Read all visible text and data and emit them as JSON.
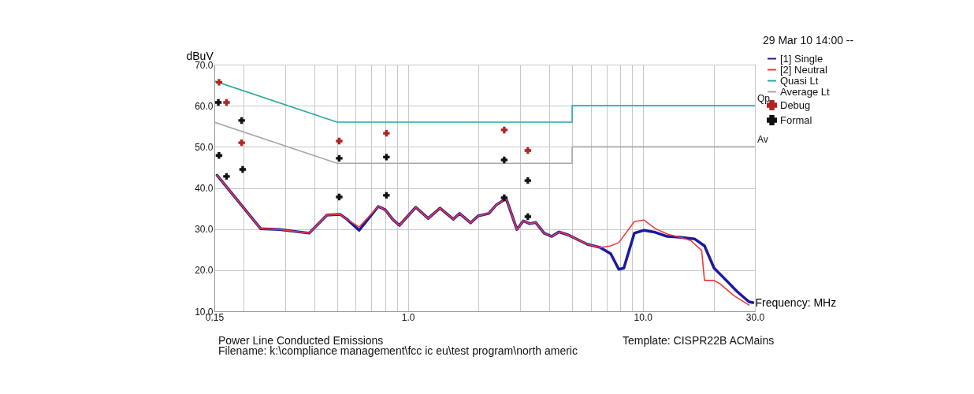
{
  "chart_data": {
    "type": "line",
    "xlabel": "Frequency: MHz",
    "ylabel": "dBuV",
    "log": "x",
    "grid": true,
    "legend": "top right",
    "line_style": "solid",
    "xlim": [
      0.15,
      30
    ],
    "ylim": [
      10,
      70
    ],
    "xticks": [
      0.15,
      {
        "value": 0.2,
        "label": null
      },
      {
        "value": 0.3,
        "label": null
      },
      {
        "value": 0.4,
        "label": null
      },
      {
        "value": 0.5,
        "label": null
      },
      {
        "value": 0.6,
        "label": null
      },
      {
        "value": 0.7,
        "label": null
      },
      {
        "value": 0.8,
        "label": null
      },
      {
        "value": 0.9,
        "label": null
      },
      {
        "value": 1,
        "label": "1.0"
      },
      {
        "value": 2,
        "label": null
      },
      {
        "value": 3,
        "label": null
      },
      {
        "value": 4,
        "label": null
      },
      {
        "value": 5,
        "label": null
      },
      {
        "value": 6,
        "label": null
      },
      {
        "value": 7,
        "label": null
      },
      {
        "value": 8,
        "label": null
      },
      {
        "value": 9,
        "label": null
      },
      {
        "value": 10,
        "label": "10.0"
      },
      {
        "value": 20,
        "label": null
      },
      {
        "value": 30,
        "label": "30.0"
      }
    ],
    "yticks": [
      {
        "value": 10,
        "label": "10.0"
      },
      {
        "value": 20,
        "label": "20.0"
      },
      {
        "value": 30,
        "label": "30.0"
      },
      {
        "value": 40,
        "label": "40.0"
      },
      {
        "value": 50,
        "label": "50.0"
      },
      {
        "value": 60,
        "label": "60.0"
      },
      {
        "value": 70,
        "label": "70.0"
      }
    ],
    "series": [
      {
        "name": "[1] Single",
        "color": "#1a1a9e",
        "x": [
          0.154,
          0.236,
          0.284,
          0.38,
          0.452,
          0.514,
          0.55,
          0.62,
          0.748,
          0.8,
          0.86,
          0.92,
          1.08,
          1.22,
          1.37,
          1.56,
          1.66,
          1.85,
          1.99,
          2.21,
          2.38,
          2.62,
          2.91,
          3.1,
          3.3,
          3.5,
          3.8,
          4.1,
          4.4,
          4.8,
          5.8,
          6.6,
          7.3,
          7.9,
          8.3,
          9.2,
          10.1,
          11.3,
          12.7,
          14.3,
          16.6,
          18.3,
          20.1,
          21.7,
          25.2,
          28.3,
          29.4
        ],
        "values": [
          43.1,
          30.1,
          29.9,
          29.0,
          33.4,
          33.6,
          32.4,
          29.7,
          35.5,
          34.7,
          32.4,
          30.9,
          35.3,
          32.6,
          35.1,
          32.4,
          33.8,
          31.5,
          33.2,
          33.8,
          35.9,
          37.4,
          29.9,
          32.0,
          31.3,
          31.6,
          29.0,
          28.2,
          29.3,
          28.6,
          26.3,
          25.5,
          24.0,
          20.2,
          20.5,
          29.0,
          29.7,
          29.2,
          28.2,
          28.0,
          27.6,
          25.9,
          20.5,
          18.6,
          14.8,
          12.3,
          12.1
        ]
      },
      {
        "name": "[2] Neutral",
        "color": "#f03a3a",
        "x": [
          0.154,
          0.236,
          0.284,
          0.38,
          0.452,
          0.514,
          0.55,
          0.62,
          0.748,
          0.8,
          0.86,
          0.92,
          1.08,
          1.22,
          1.37,
          1.56,
          1.66,
          1.85,
          1.99,
          2.21,
          2.38,
          2.62,
          2.91,
          3.1,
          3.3,
          3.5,
          3.8,
          4.1,
          4.4,
          4.8,
          5.8,
          6.6,
          7.3,
          7.9,
          9.2,
          10.1,
          11.3,
          12.7,
          14.3,
          16.0,
          17.8,
          18.3,
          20.1,
          21.3,
          24.4,
          28.3
        ],
        "values": [
          43.1,
          30.1,
          29.9,
          29.0,
          33.4,
          33.6,
          32.4,
          30.5,
          35.5,
          34.7,
          32.4,
          30.9,
          35.3,
          32.6,
          35.1,
          32.4,
          33.8,
          31.5,
          33.2,
          33.8,
          35.9,
          37.4,
          29.9,
          32.0,
          31.3,
          31.6,
          29.0,
          28.2,
          29.3,
          28.6,
          26.3,
          25.5,
          25.9,
          26.7,
          31.8,
          32.2,
          30.1,
          28.8,
          28.0,
          27.2,
          24.8,
          17.5,
          17.5,
          16.7,
          13.8,
          11.5
        ]
      },
      {
        "name": "Quasi Lt",
        "color": "#2aa7a7",
        "x": [
          0.15,
          0.5,
          5,
          5,
          30
        ],
        "values": [
          66,
          56,
          56,
          60,
          60
        ]
      },
      {
        "name": "Average Lt",
        "color": "#a8a8a8",
        "x": [
          0.15,
          0.5,
          5,
          5,
          30
        ],
        "values": [
          56,
          46,
          46,
          50,
          50
        ]
      },
      {
        "name": "Debug",
        "type": "scatter",
        "marker": "cross",
        "color": "#b22222",
        "x": [
          0.157,
          0.169,
          0.196,
          0.51,
          0.81,
          2.57,
          3.24
        ],
        "values": [
          65.7,
          60.8,
          51.0,
          51.4,
          53.3,
          54.1,
          49.1
        ]
      },
      {
        "name": "Formal",
        "type": "scatter",
        "marker": "cross",
        "color": "#111111",
        "x": [
          0.156,
          0.157,
          0.169,
          0.196,
          0.198,
          0.51,
          0.51,
          0.81,
          0.81,
          2.57,
          2.57,
          3.24,
          3.24
        ],
        "values": [
          60.8,
          47.9,
          42.8,
          56.4,
          44.5,
          47.2,
          37.8,
          47.5,
          38.2,
          46.8,
          37.6,
          41.8,
          33.0
        ]
      }
    ],
    "annotations": [
      {
        "text": "Qp",
        "x": 30,
        "y": 60
      },
      {
        "text": "Av",
        "x": 30,
        "y": 50
      },
      "29 Mar 10 14:00 --",
      "Power Line Conducted Emissions",
      "Template: CISPR22B ACMains",
      "Filename: k:\\compliance management\\fcc ic eu\\test program\\north americ"
    ]
  }
}
